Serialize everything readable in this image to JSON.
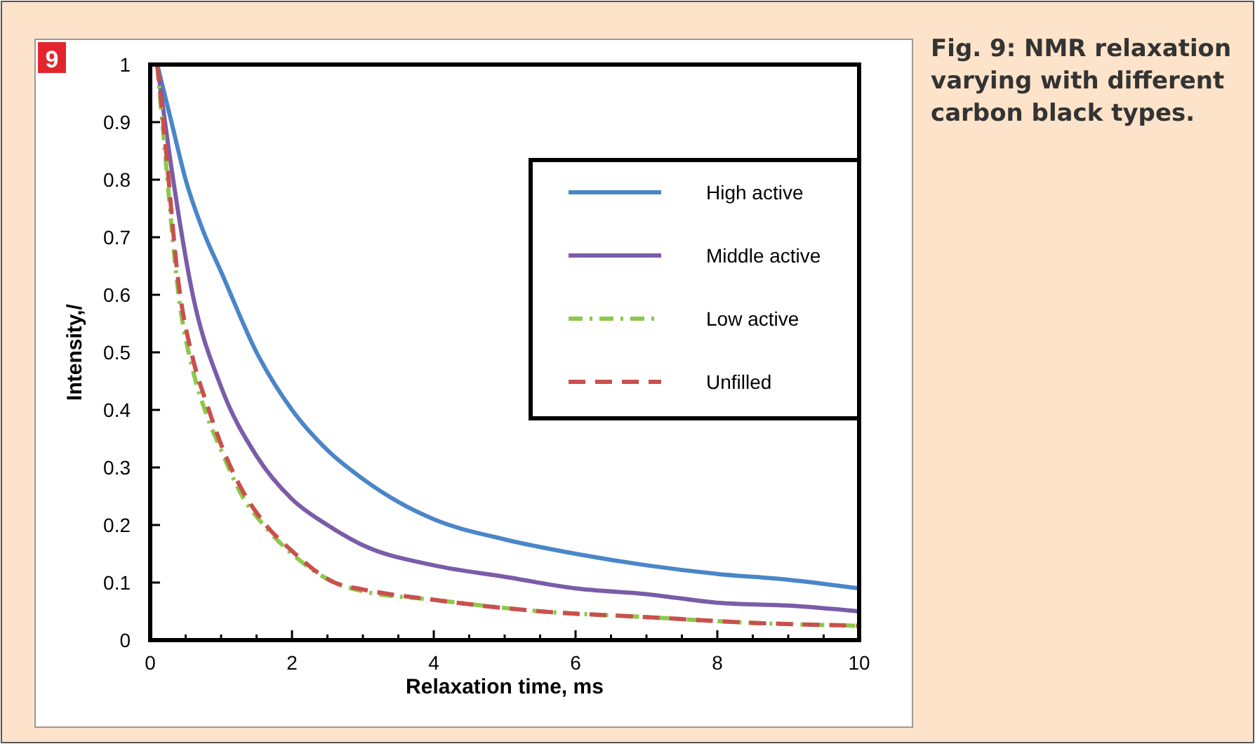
{
  "chart_data": {
    "type": "line",
    "title": "Fig. 9: NMR relaxation varying with different carbon black types.",
    "annotations": [
      "9"
    ],
    "xlabel": "Relaxation time, ms",
    "ylabel": "Intensity,/",
    "xlim": [
      0,
      10
    ],
    "ylim": [
      0,
      1
    ],
    "xticks": [
      0,
      {
        "value": 0.5,
        "label": null
      },
      {
        "value": 1,
        "label": null
      },
      {
        "value": 1.5,
        "label": null
      },
      2,
      {
        "value": 2.5,
        "label": null
      },
      {
        "value": 3,
        "label": null
      },
      {
        "value": 3.5,
        "label": null
      },
      4,
      {
        "value": 4.5,
        "label": null
      },
      {
        "value": 5,
        "label": null
      },
      {
        "value": 5.5,
        "label": null
      },
      6,
      {
        "value": 6.5,
        "label": null
      },
      {
        "value": 7,
        "label": null
      },
      {
        "value": 7.5,
        "label": null
      },
      8,
      {
        "value": 8.5,
        "label": null
      },
      {
        "value": 9,
        "label": null
      },
      {
        "value": 9.5,
        "label": null
      },
      10
    ],
    "yticks": [
      0,
      0.1,
      0.2,
      0.3,
      0.4,
      0.5,
      0.6,
      0.7,
      0.8,
      0.9,
      1
    ],
    "grid": false,
    "legend": "top right",
    "marker": "none",
    "series": [
      {
        "name": "High active",
        "color": "#4a86c8",
        "line_style": "solid",
        "x": [
          0.1,
          0.3,
          0.5,
          0.75,
          1,
          1.5,
          2,
          2.5,
          3,
          3.5,
          4,
          5,
          6,
          7,
          8,
          9,
          10
        ],
        "values": [
          1.0,
          0.9,
          0.8,
          0.71,
          0.64,
          0.5,
          0.4,
          0.33,
          0.28,
          0.24,
          0.21,
          0.175,
          0.15,
          0.13,
          0.115,
          0.105,
          0.09
        ]
      },
      {
        "name": "Middle active",
        "color": "#7a5ca8",
        "line_style": "solid",
        "x": [
          0.1,
          0.3,
          0.6,
          1,
          1.5,
          2,
          2.5,
          3,
          4,
          5,
          6,
          7,
          8,
          9,
          10
        ],
        "values": [
          1.0,
          0.82,
          0.6,
          0.44,
          0.32,
          0.245,
          0.2,
          0.165,
          0.13,
          0.11,
          0.09,
          0.08,
          0.065,
          0.06,
          0.05
        ]
      },
      {
        "name": "Low active",
        "color": "#8cc84a",
        "line_style": "dashdot",
        "x": [
          0.1,
          0.2,
          0.4,
          0.6,
          0.8,
          1,
          1.3,
          1.6,
          2,
          2.6,
          3,
          4,
          5.5,
          7,
          8.5,
          10
        ],
        "values": [
          1.0,
          0.86,
          0.6,
          0.47,
          0.39,
          0.33,
          0.25,
          0.2,
          0.15,
          0.1,
          0.085,
          0.07,
          0.05,
          0.04,
          0.03,
          0.025
        ]
      },
      {
        "name": "Unfilled",
        "color": "#c9504d",
        "line_style": "dashed",
        "x": [
          0.1,
          0.2,
          0.4,
          0.6,
          0.8,
          1,
          1.3,
          1.6,
          2,
          2.6,
          3,
          4,
          5.5,
          7,
          8.5,
          10
        ],
        "values": [
          1.0,
          0.88,
          0.62,
          0.49,
          0.41,
          0.34,
          0.26,
          0.205,
          0.155,
          0.1,
          0.088,
          0.07,
          0.05,
          0.04,
          0.03,
          0.025
        ]
      }
    ]
  }
}
